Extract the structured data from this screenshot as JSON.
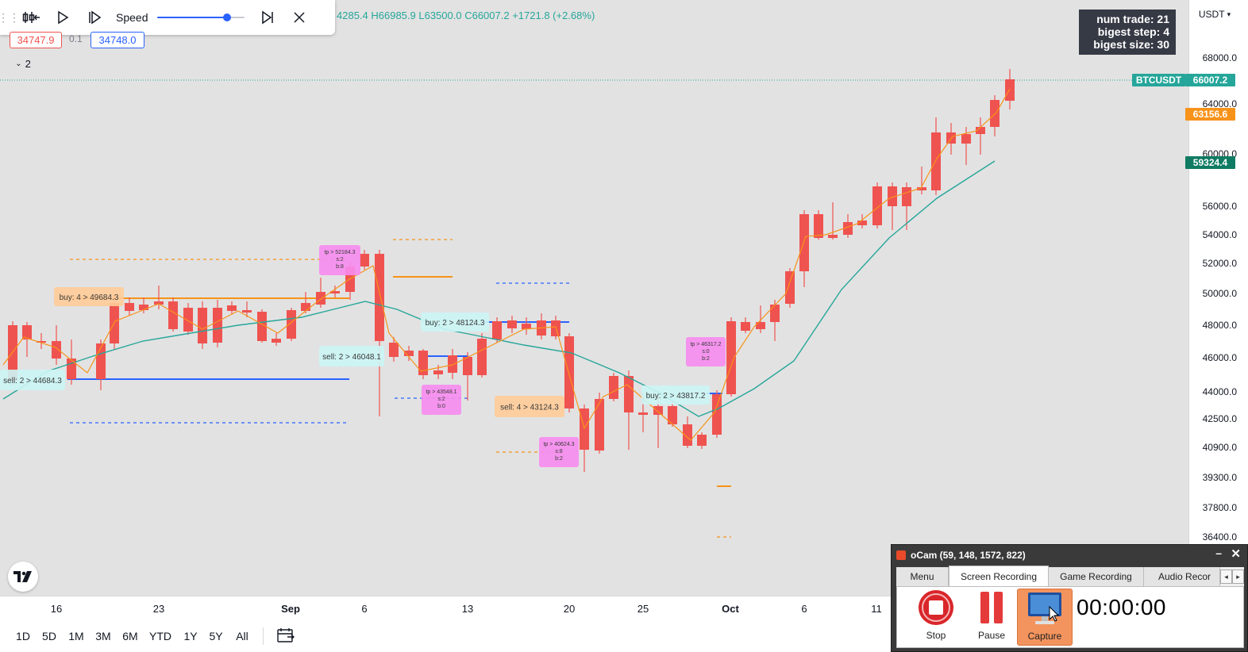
{
  "replay_toolbar": {
    "speed_label": "Speed",
    "speed_level": 0.8,
    "icons": [
      "drag-handle-icon",
      "select-bar-icon",
      "play-icon",
      "forward-step-icon",
      "jump-to-realtime-icon",
      "close-icon"
    ]
  },
  "ohlc_text": "4285.4 H66985.9 L63500.0 C66007.2 +1721.8 (+2.68%)",
  "bid_price": "34747.9",
  "spread": "0.1",
  "ask_price": "34748.0",
  "indicator_count": "2",
  "stats": {
    "line1": "num trade: 21",
    "line2": "bigest step: 4",
    "line3": "bigest size: 30"
  },
  "currency": "USDT",
  "price_axis": {
    "ticks": [
      "68000.0",
      "64000.0",
      "60000.0",
      "56000.0",
      "54000.0",
      "52000.0",
      "50000.0",
      "48000.0",
      "46000.0",
      "44000.0",
      "42500.0",
      "40900.0",
      "39300.0",
      "37800.0",
      "36400.0"
    ],
    "badges": [
      {
        "label": "BTCUSDT",
        "value": "66007.2",
        "color": "#26a69a"
      },
      {
        "value": "63156.6",
        "color": "#f7931a"
      },
      {
        "value": "59324.4",
        "color": "#0f7b63"
      }
    ]
  },
  "time_axis": [
    "16",
    "23",
    "Sep",
    "6",
    "13",
    "20",
    "25",
    "Oct",
    "6",
    "11"
  ],
  "range_buttons": [
    "1D",
    "5D",
    "1M",
    "3M",
    "6M",
    "YTD",
    "1Y",
    "5Y",
    "All"
  ],
  "colors": {
    "up": "#26a69a",
    "down": "#ef5350",
    "ma_slow": "#26a69a",
    "ma_fast": "#f7931a",
    "buy_line": "#f7931a",
    "sell_line": "#2962ff",
    "tp_label": "#f78cf0",
    "buy_label": "#ffcc99",
    "sell_label": "#ccf5f5"
  },
  "annotations": [
    {
      "text": "tp > 52184.3",
      "sub1": "s:2",
      "sub2": "b:8"
    },
    {
      "text": "buy: 4 > 49684.3"
    },
    {
      "text": "buy: 2 > 48124.3"
    },
    {
      "text": "sell: 2 > 46048.1"
    },
    {
      "text": "sell: 2 > 44684.3"
    },
    {
      "text": "tp > 46317.2",
      "sub1": "s:0",
      "sub2": "b:2"
    },
    {
      "text": "tp > 43548.1",
      "sub1": "s:2",
      "sub2": "b:0"
    },
    {
      "text": "buy: 2 > 43817.2"
    },
    {
      "text": "sell: 4 > 43124.3"
    },
    {
      "text": "tp > 40624.3",
      "sub1": "s:8",
      "sub2": "b:2"
    }
  ],
  "ocam": {
    "title": "oCam (59, 148, 1572, 822)",
    "tabs": [
      "Menu",
      "Screen Recording",
      "Game Recording",
      "Audio Recor"
    ],
    "tools": [
      "Stop",
      "Pause",
      "Capture"
    ],
    "timer": "00:00:00"
  }
}
